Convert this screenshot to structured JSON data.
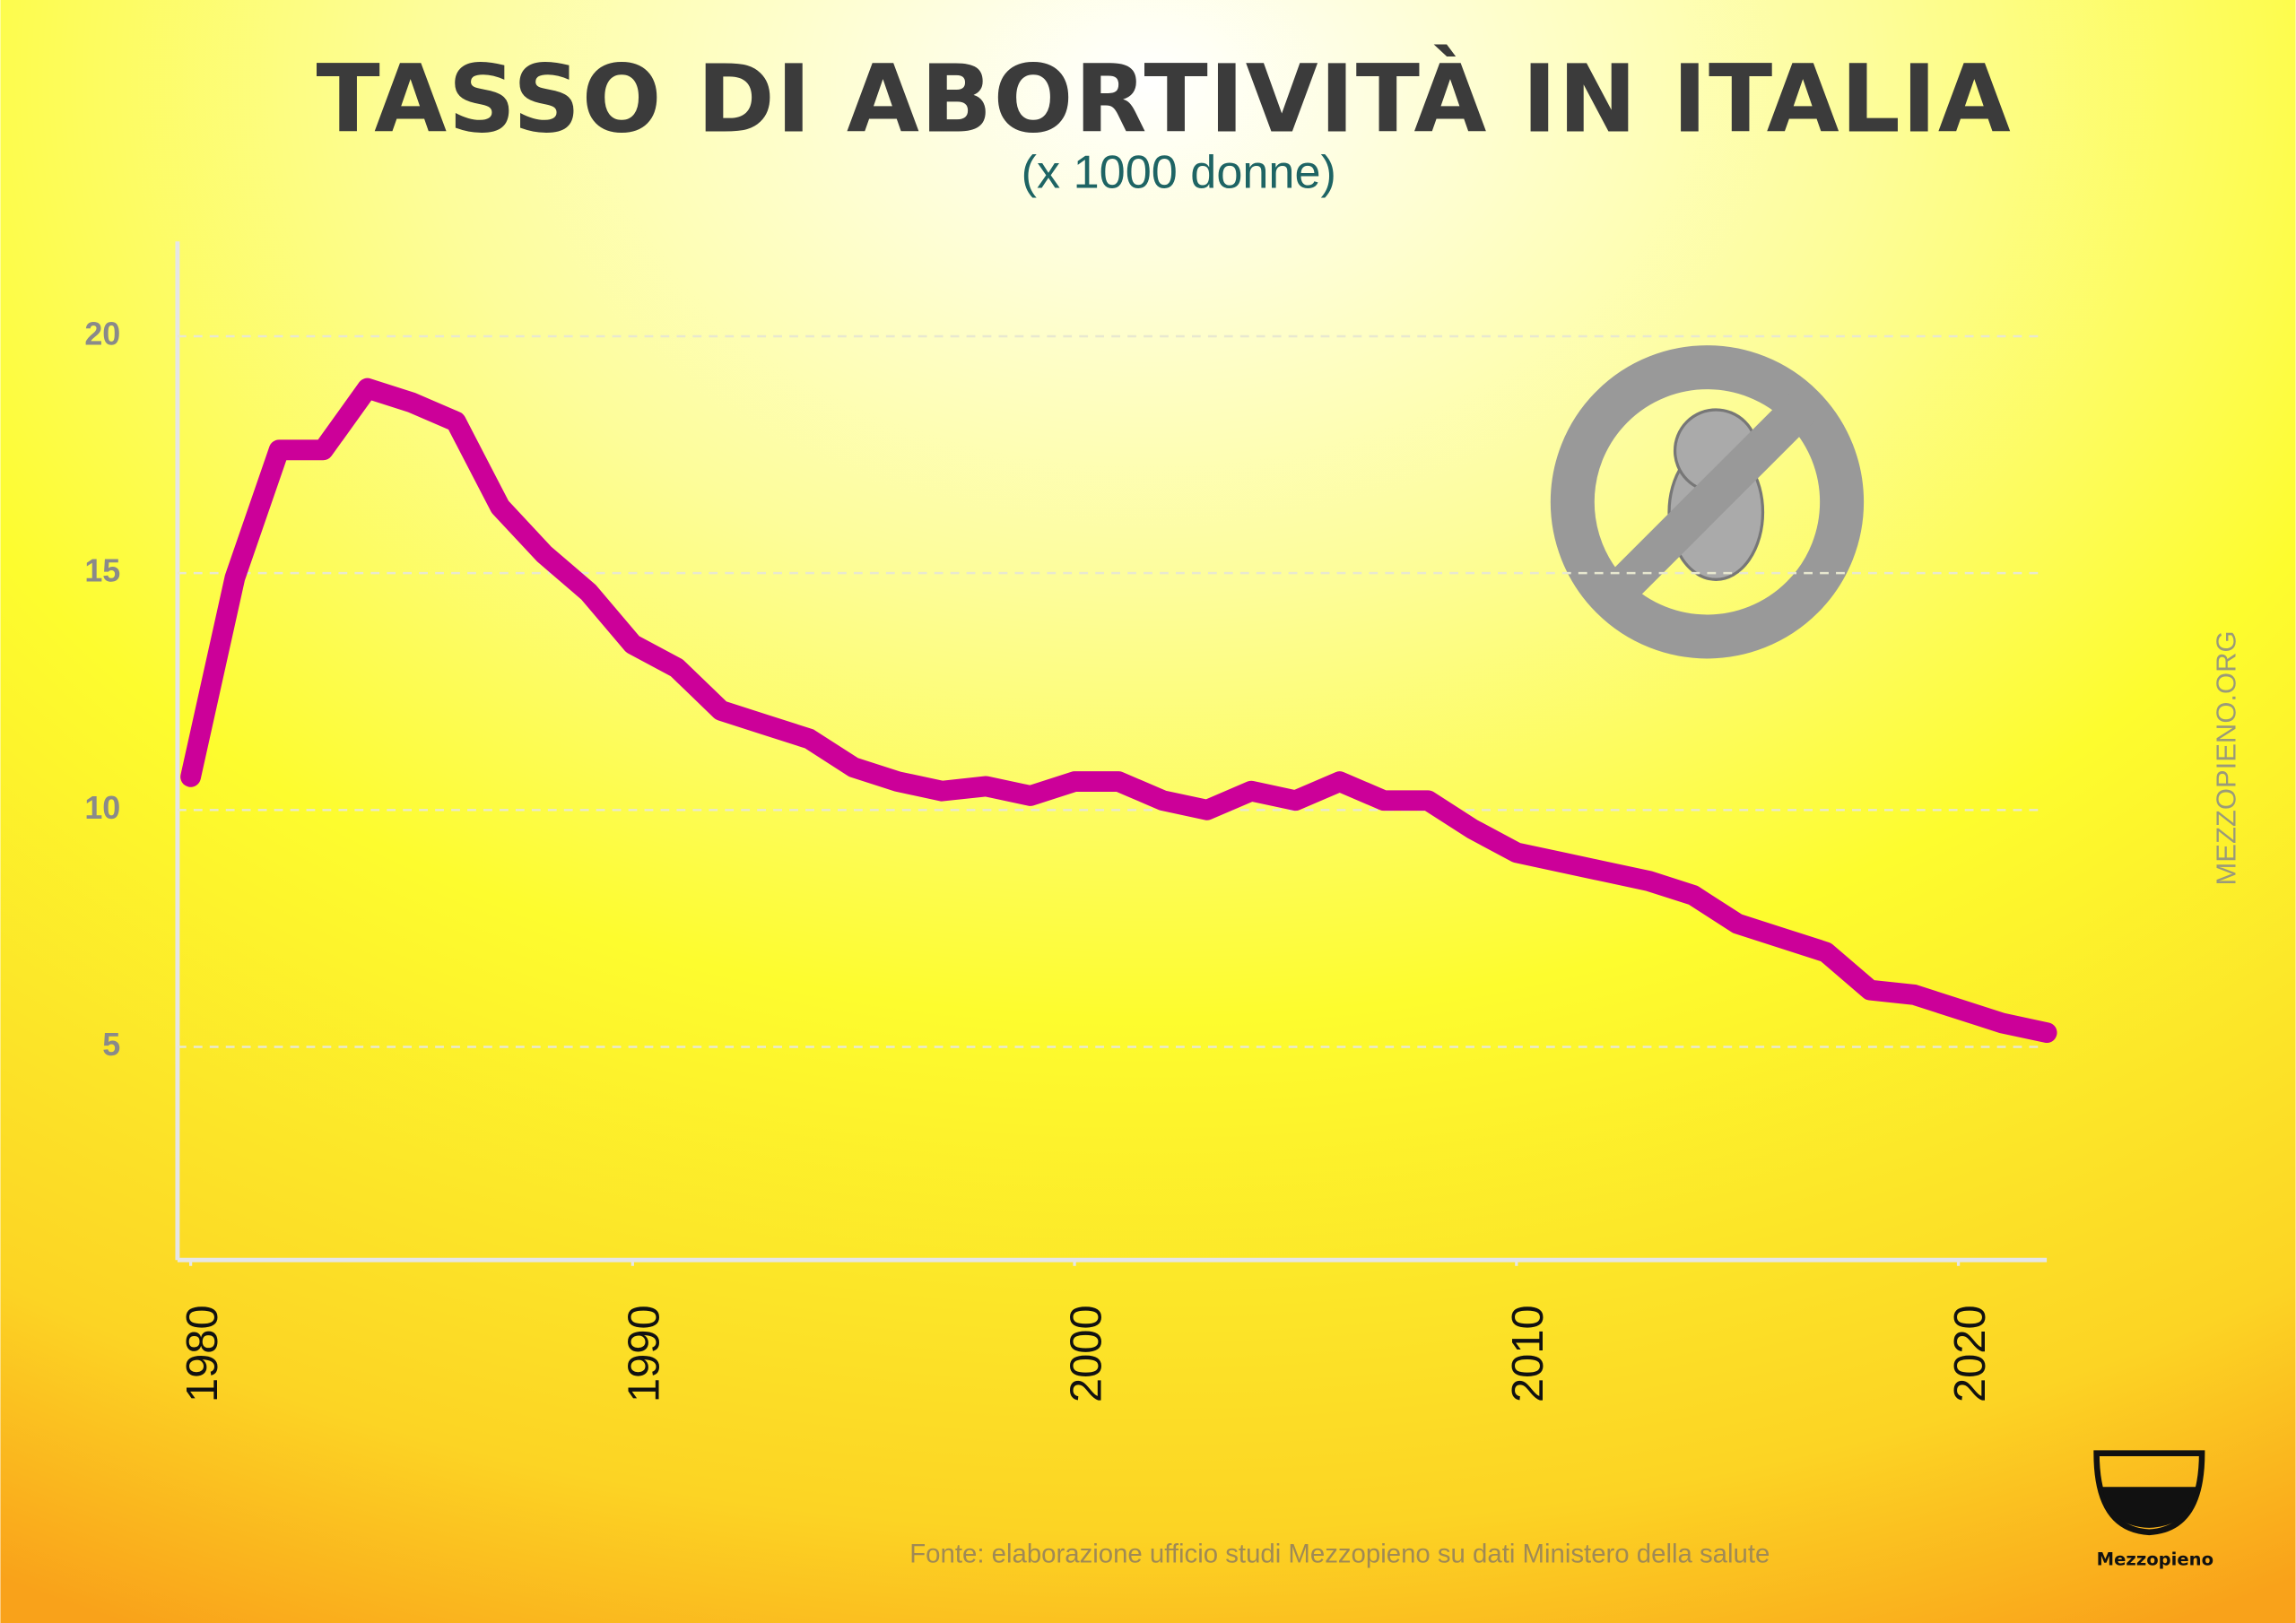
{
  "chart_data": {
    "type": "line",
    "title": "TASSO DI ABORTIVITÀ IN ITALIA",
    "subtitle": "(x 1000 donne)",
    "source": "Fonte: elaborazione ufficio studi Mezzopieno su dati Ministero della salute",
    "watermark": "MEZZOPIENO.ORG",
    "logo": "Mezzopieno",
    "x": [
      1980,
      1981,
      1982,
      1983,
      1984,
      1985,
      1986,
      1987,
      1988,
      1989,
      1990,
      1991,
      1992,
      1993,
      1994,
      1995,
      1996,
      1997,
      1998,
      1999,
      2000,
      2001,
      2002,
      2003,
      2004,
      2005,
      2006,
      2007,
      2008,
      2009,
      2010,
      2011,
      2012,
      2013,
      2014,
      2015,
      2016,
      2017,
      2018,
      2019,
      2020,
      2021,
      2022
    ],
    "series": [
      {
        "color": "#cc0099",
        "values": [
          10.7,
          14.9,
          17.6,
          17.6,
          18.9,
          18.6,
          18.2,
          16.4,
          15.4,
          14.6,
          13.5,
          13.0,
          12.1,
          11.8,
          11.5,
          10.9,
          10.6,
          10.4,
          10.5,
          10.3,
          10.6,
          10.6,
          10.2,
          10.0,
          10.4,
          10.2,
          10.6,
          10.2,
          10.2,
          9.6,
          9.1,
          8.9,
          8.7,
          8.5,
          8.2,
          7.6,
          7.3,
          7.0,
          6.2,
          6.1,
          5.8,
          5.5,
          5.3
        ]
      }
    ],
    "xlim": [
      1980,
      2022
    ],
    "xticks": [
      1980,
      1990,
      2000,
      2010,
      2020
    ],
    "ylim": [
      0.5,
      22
    ],
    "yticks": [
      5,
      10,
      15,
      20
    ],
    "grid": true
  }
}
